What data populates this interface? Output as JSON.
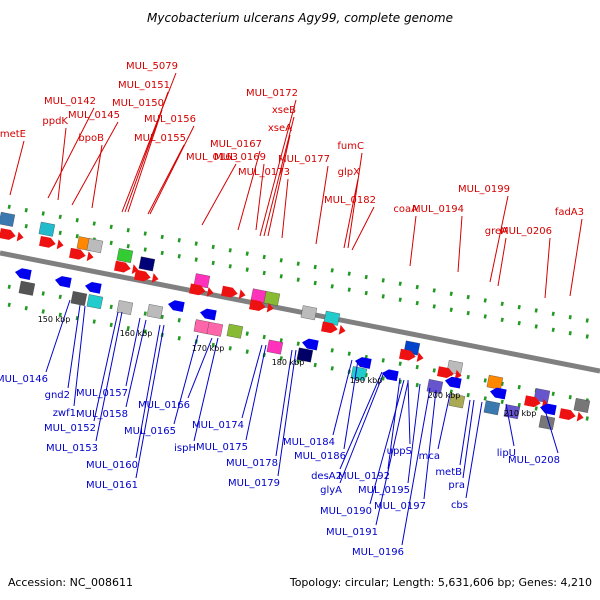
{
  "title": "Mycobacterium ulcerans Agy99, complete genome",
  "footer": {
    "accession": "Accession: NC_008611",
    "topology": "Topology: circular; Length: 5,631,606 bp; Genes: 4,210"
  },
  "colors": {
    "backbone": "#808080",
    "positive_label": "#d40000",
    "negative_label": "#0000cc",
    "tick": "#229922"
  },
  "kbp_labels": [
    "150 kbp",
    "160 kbp",
    "170 kbp",
    "180 kbp",
    "190 kbp",
    "200 kbp",
    "210 kbp"
  ],
  "positive_genes": [
    "metE",
    "MUL_0142",
    "ppdK",
    "MUL_0145",
    "bpoB",
    "MUL_5079",
    "MUL_0151",
    "MUL_0150",
    "MUL_0156",
    "MUL_0155",
    "MUL_0163",
    "MUL_0167",
    "MUL_0169",
    "MUL_0172",
    "xseB",
    "xseA",
    "MUL_0173",
    "MUL_0177",
    "fumC",
    "glpX",
    "MUL_0182",
    "coaA",
    "MUL_0194",
    "MUL_0199",
    "greA",
    "fadA3",
    "MUL_0206"
  ],
  "negative_genes": [
    "MUL_0146",
    "gnd2",
    "zwf1",
    "MUL_0152",
    "MUL_0153",
    "MUL_0157",
    "MUL_0158",
    "MUL_0160",
    "MUL_0161",
    "MUL_0165",
    "MUL_0166",
    "ispH",
    "MUL_0174",
    "MUL_0175",
    "MUL_0178",
    "MUL_0179",
    "MUL_0184",
    "MUL_0186",
    "desA2",
    "glyA",
    "MUL_0192",
    "uppS",
    "MUL_0190",
    "MUL_0191",
    "MUL_0195",
    "MUL_0196",
    "MUL_0197",
    "mca",
    "metB",
    "pra",
    "cbs",
    "lipU",
    "MUL_0208"
  ]
}
